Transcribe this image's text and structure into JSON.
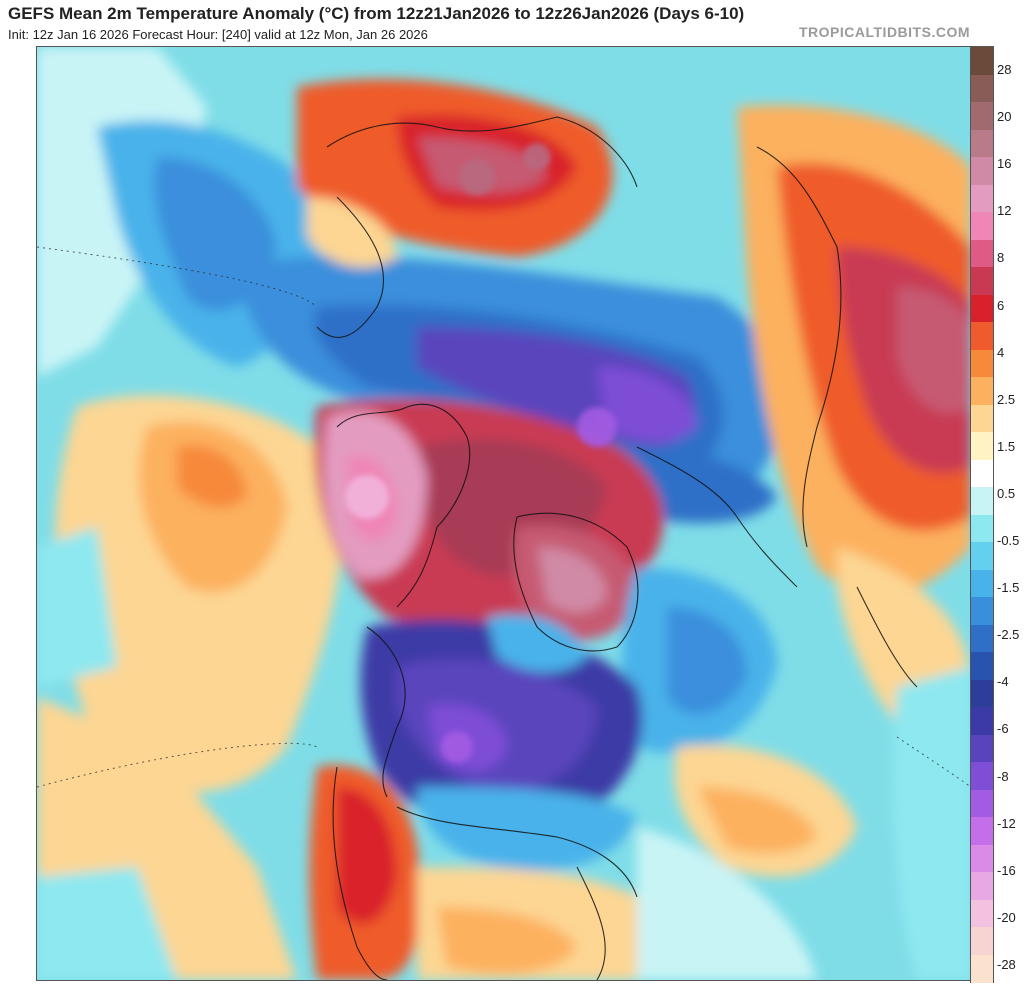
{
  "header": {
    "title": "GEFS Mean 2m Temperature Anomaly (°C) from 12z21Jan2026 to 12z26Jan2026 (Days 6-10)",
    "subtitle": "Init: 12z Jan 16 2026   Forecast Hour: [240]   valid at 12z Mon, Jan 26 2026",
    "credit": "TROPICALTIDBITS.COM"
  },
  "colorbar": {
    "labels": [
      "28",
      "20",
      "16",
      "12",
      "8",
      "6",
      "4",
      "2.5",
      "1.5",
      "0.5",
      "-0.5",
      "-1.5",
      "-2.5",
      "-4",
      "-6",
      "-8",
      "-12",
      "-16",
      "-20",
      "-28"
    ],
    "colors": [
      "#6b4a3a",
      "#8a5c57",
      "#a06a6e",
      "#b97a8a",
      "#d08aa6",
      "#e39bc0",
      "#ef86b6",
      "#e05a86",
      "#c93a52",
      "#d9212b",
      "#ef5b2c",
      "#f7893a",
      "#fcb15e",
      "#fdd693",
      "#fff3c4",
      "#ffffff",
      "#c9f4f6",
      "#8ee8f0",
      "#62d0ee",
      "#48b2ea",
      "#3a8fdc",
      "#2f6fc8",
      "#2853ae",
      "#2c3e99",
      "#3c3aa6",
      "#5a44bd",
      "#7e4ed6",
      "#a45be4",
      "#c46fe9",
      "#d98be7",
      "#e8a8e4",
      "#f2c2e0",
      "#f7d4d2",
      "#fbe2cf"
    ]
  },
  "map": {
    "background_color": "#7fdde8",
    "regions": [
      {
        "name": "north-atlantic-cool",
        "color": "#8ee8f0"
      },
      {
        "name": "pacific-warm",
        "color": "#fcb15e"
      },
      {
        "name": "eurasia-cold",
        "color": "#3a8fdc"
      },
      {
        "name": "siberia-very-cold",
        "color": "#7e4ed6"
      },
      {
        "name": "arctic-warm",
        "color": "#c93a52"
      },
      {
        "name": "greenland-warm",
        "color": "#c65a72"
      },
      {
        "name": "alaska-warm",
        "color": "#e39bc0"
      },
      {
        "name": "canada-very-cold",
        "color": "#5a44bd"
      },
      {
        "name": "us-west-warm",
        "color": "#ef5b2c"
      },
      {
        "name": "north-africa-warm",
        "color": "#e05a86"
      },
      {
        "name": "europe-warm",
        "color": "#ef5b2c"
      }
    ]
  }
}
